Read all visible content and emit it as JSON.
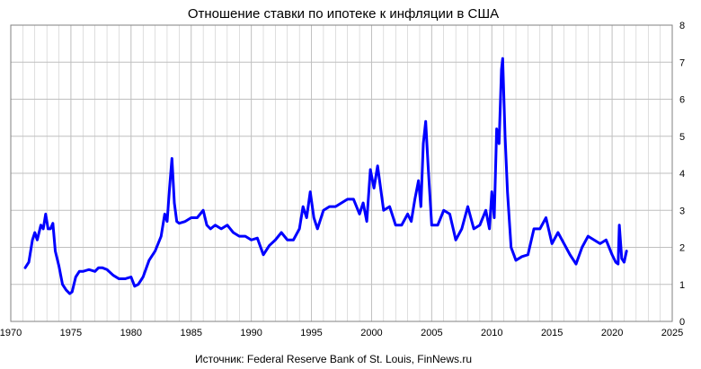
{
  "chart_data": {
    "type": "line",
    "title": "Отношение ставки по ипотеке к инфляции в США",
    "source": "Источник: Federal Reserve Bank of St. Louis, FinNews.ru",
    "xlim": [
      1970,
      2025
    ],
    "ylim": [
      0,
      8
    ],
    "x_ticks": [
      "1970",
      "1975",
      "1980",
      "1985",
      "1990",
      "1995",
      "2000",
      "2005",
      "2010",
      "2015",
      "2020",
      "2025"
    ],
    "y_ticks": [
      "0",
      "1",
      "2",
      "3",
      "4",
      "5",
      "6",
      "7",
      "8"
    ],
    "grid": true,
    "legend": "none",
    "line_color": "#0000ff",
    "grid_color": "#bfbfbf",
    "series": [
      {
        "x": [
          1971.2,
          1971.5,
          1971.8,
          1972.0,
          1972.2,
          1972.5,
          1972.7,
          1972.9,
          1973.1,
          1973.3,
          1973.5,
          1973.7,
          1974.0,
          1974.3,
          1974.6,
          1974.9,
          1975.1,
          1975.4,
          1975.7,
          1976.0,
          1976.5,
          1977.0,
          1977.3,
          1977.6,
          1978.0,
          1978.5,
          1979.0,
          1979.5,
          1980.0,
          1980.3,
          1980.6,
          1981.0,
          1981.5,
          1982.0,
          1982.5,
          1982.8,
          1983.0,
          1983.2,
          1983.4,
          1983.6,
          1983.8,
          1984.0,
          1984.5,
          1985.0,
          1985.5,
          1986.0,
          1986.3,
          1986.6,
          1987.0,
          1987.5,
          1988.0,
          1988.5,
          1989.0,
          1989.5,
          1990.0,
          1990.5,
          1991.0,
          1991.5,
          1992.0,
          1992.5,
          1993.0,
          1993.5,
          1994.0,
          1994.3,
          1994.6,
          1994.9,
          1995.2,
          1995.5,
          1996.0,
          1996.5,
          1997.0,
          1997.5,
          1998.0,
          1998.5,
          1999.0,
          1999.3,
          1999.6,
          1999.9,
          2000.2,
          2000.5,
          2001.0,
          2001.5,
          2002.0,
          2002.5,
          2003.0,
          2003.3,
          2003.6,
          2003.9,
          2004.1,
          2004.3,
          2004.5,
          2004.7,
          2005.0,
          2005.5,
          2006.0,
          2006.5,
          2007.0,
          2007.5,
          2008.0,
          2008.5,
          2009.0,
          2009.5,
          2009.8,
          2010.0,
          2010.2,
          2010.4,
          2010.6,
          2010.8,
          2010.9,
          2011.1,
          2011.3,
          2011.6,
          2012.0,
          2012.5,
          2013.0,
          2013.5,
          2014.0,
          2014.5,
          2015.0,
          2015.5,
          2016.0,
          2016.5,
          2017.0,
          2017.5,
          2018.0,
          2018.5,
          2019.0,
          2019.5,
          2020.0,
          2020.3,
          2020.5,
          2020.6,
          2020.8,
          2021.0,
          2021.2
        ],
        "y": [
          1.45,
          1.6,
          2.2,
          2.4,
          2.2,
          2.6,
          2.5,
          2.9,
          2.5,
          2.5,
          2.65,
          1.9,
          1.5,
          1.0,
          0.85,
          0.75,
          0.8,
          1.2,
          1.35,
          1.35,
          1.4,
          1.35,
          1.45,
          1.45,
          1.4,
          1.25,
          1.15,
          1.15,
          1.2,
          0.95,
          1.0,
          1.2,
          1.65,
          1.9,
          2.3,
          2.9,
          2.7,
          3.6,
          4.4,
          3.2,
          2.7,
          2.65,
          2.7,
          2.8,
          2.8,
          3.0,
          2.6,
          2.5,
          2.6,
          2.5,
          2.6,
          2.4,
          2.3,
          2.3,
          2.2,
          2.25,
          1.8,
          2.05,
          2.2,
          2.4,
          2.2,
          2.2,
          2.5,
          3.1,
          2.8,
          3.5,
          2.8,
          2.5,
          3.0,
          3.1,
          3.1,
          3.2,
          3.3,
          3.3,
          2.9,
          3.2,
          2.7,
          4.1,
          3.6,
          4.2,
          3.0,
          3.1,
          2.6,
          2.6,
          2.9,
          2.7,
          3.3,
          3.8,
          3.1,
          4.8,
          5.4,
          4.2,
          2.6,
          2.6,
          3.0,
          2.9,
          2.2,
          2.5,
          3.1,
          2.5,
          2.6,
          3.0,
          2.5,
          3.5,
          2.8,
          5.2,
          4.8,
          6.8,
          7.1,
          5.0,
          3.5,
          2.0,
          1.65,
          1.75,
          1.8,
          2.5,
          2.5,
          2.8,
          2.1,
          2.4,
          2.1,
          1.8,
          1.55,
          2.0,
          2.3,
          2.2,
          2.1,
          2.2,
          1.8,
          1.6,
          1.55,
          2.6,
          1.7,
          1.6,
          1.9
        ]
      }
    ]
  }
}
